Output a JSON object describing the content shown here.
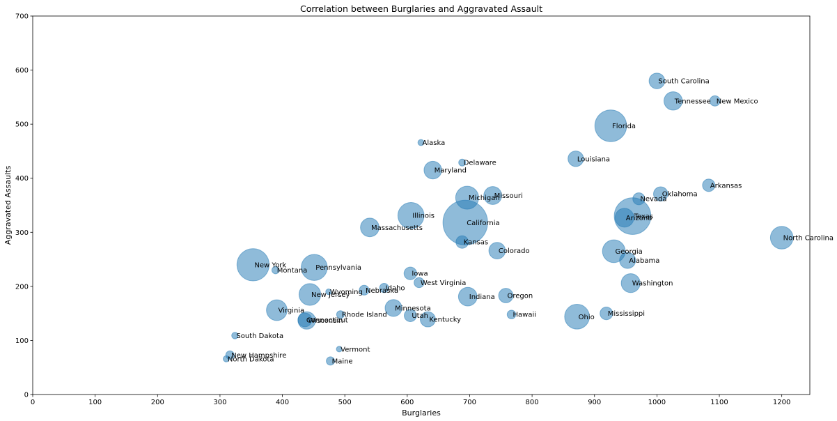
{
  "chart_data": {
    "type": "scatter",
    "title": "Correlation between Burglaries and Aggravated Assault",
    "xlabel": "Burglaries",
    "ylabel": "Aggravated Assaults",
    "xlim": [
      0,
      1245
    ],
    "ylim": [
      0,
      700
    ],
    "xticks": [
      0,
      100,
      200,
      300,
      400,
      500,
      600,
      700,
      800,
      900,
      1000,
      1100,
      1200
    ],
    "yticks": [
      0,
      100,
      200,
      300,
      400,
      500,
      600,
      700
    ],
    "grid": false,
    "bubble_color": "#1f77b4",
    "bubble_alpha": 0.5,
    "points": [
      {
        "label": "Alabama",
        "x": 953,
        "y": 248,
        "size": 4.8
      },
      {
        "label": "Alaska",
        "x": 622,
        "y": 466,
        "size": 0.7
      },
      {
        "label": "Arizona",
        "x": 948,
        "y": 327,
        "size": 6.6
      },
      {
        "label": "Arkansas",
        "x": 1083,
        "y": 387,
        "size": 2.9
      },
      {
        "label": "California",
        "x": 693,
        "y": 318,
        "size": 37.3
      },
      {
        "label": "Colorado",
        "x": 744,
        "y": 266,
        "size": 5.1
      },
      {
        "label": "Connecticut",
        "x": 436,
        "y": 138,
        "size": 3.6
      },
      {
        "label": "Delaware",
        "x": 688,
        "y": 429,
        "size": 0.9
      },
      {
        "label": "Florida",
        "x": 926,
        "y": 497,
        "size": 18.8
      },
      {
        "label": "Georgia",
        "x": 931,
        "y": 265,
        "size": 9.7
      },
      {
        "label": "Hawaii",
        "x": 767,
        "y": 148,
        "size": 1.4
      },
      {
        "label": "Idaho",
        "x": 563,
        "y": 197,
        "size": 1.6
      },
      {
        "label": "Illinois",
        "x": 606,
        "y": 331,
        "size": 12.8
      },
      {
        "label": "Indiana",
        "x": 697,
        "y": 181,
        "size": 6.5
      },
      {
        "label": "Iowa",
        "x": 605,
        "y": 224,
        "size": 3.0
      },
      {
        "label": "Kansas",
        "x": 688,
        "y": 282,
        "size": 2.9
      },
      {
        "label": "Kentucky",
        "x": 633,
        "y": 139,
        "size": 4.3
      },
      {
        "label": "Louisiana",
        "x": 870,
        "y": 436,
        "size": 4.5
      },
      {
        "label": "Maine",
        "x": 477,
        "y": 62,
        "size": 1.3
      },
      {
        "label": "Maryland",
        "x": 641,
        "y": 415,
        "size": 5.8
      },
      {
        "label": "Massachusetts",
        "x": 540,
        "y": 309,
        "size": 6.5
      },
      {
        "label": "Michigan",
        "x": 696,
        "y": 364,
        "size": 9.9
      },
      {
        "label": "Minnesota",
        "x": 578,
        "y": 160,
        "size": 5.3
      },
      {
        "label": "Mississippi",
        "x": 919,
        "y": 150,
        "size": 3.0
      },
      {
        "label": "Missouri",
        "x": 737,
        "y": 368,
        "size": 6.0
      },
      {
        "label": "Montana",
        "x": 389,
        "y": 230,
        "size": 1.0
      },
      {
        "label": "Nebraska",
        "x": 531,
        "y": 193,
        "size": 1.8
      },
      {
        "label": "Nevada",
        "x": 971,
        "y": 362,
        "size": 2.7
      },
      {
        "label": "New Hampshire",
        "x": 316,
        "y": 73,
        "size": 1.3
      },
      {
        "label": "New Jersey",
        "x": 444,
        "y": 185,
        "size": 8.8
      },
      {
        "label": "New Mexico",
        "x": 1093,
        "y": 543,
        "size": 2.0
      },
      {
        "label": "New York",
        "x": 353,
        "y": 240,
        "size": 19.4
      },
      {
        "label": "North Carolina",
        "x": 1200,
        "y": 290,
        "size": 9.6
      },
      {
        "label": "North Dakota",
        "x": 310,
        "y": 66,
        "size": 0.7
      },
      {
        "label": "Ohio",
        "x": 872,
        "y": 144,
        "size": 11.5
      },
      {
        "label": "Oklahoma",
        "x": 1006,
        "y": 371,
        "size": 3.8
      },
      {
        "label": "Oregon",
        "x": 758,
        "y": 183,
        "size": 3.9
      },
      {
        "label": "Pennsylvania",
        "x": 451,
        "y": 235,
        "size": 12.7
      },
      {
        "label": "Rhode Island",
        "x": 493,
        "y": 148,
        "size": 1.1
      },
      {
        "label": "South Carolina",
        "x": 1000,
        "y": 580,
        "size": 4.6
      },
      {
        "label": "South Dakota",
        "x": 324,
        "y": 109,
        "size": 0.8
      },
      {
        "label": "Tennessee",
        "x": 1026,
        "y": 543,
        "size": 6.3
      },
      {
        "label": "Texas",
        "x": 961,
        "y": 330,
        "size": 25.1
      },
      {
        "label": "Utah",
        "x": 605,
        "y": 146,
        "size": 2.8
      },
      {
        "label": "Vermont",
        "x": 491,
        "y": 84,
        "size": 0.6
      },
      {
        "label": "Virginia",
        "x": 391,
        "y": 156,
        "size": 8.0
      },
      {
        "label": "Washington",
        "x": 958,
        "y": 206,
        "size": 6.7
      },
      {
        "label": "West Virginia",
        "x": 619,
        "y": 207,
        "size": 1.9
      },
      {
        "label": "Wisconsin",
        "x": 439,
        "y": 137,
        "size": 5.7
      },
      {
        "label": "Wyoming",
        "x": 474,
        "y": 190,
        "size": 0.6
      }
    ]
  }
}
